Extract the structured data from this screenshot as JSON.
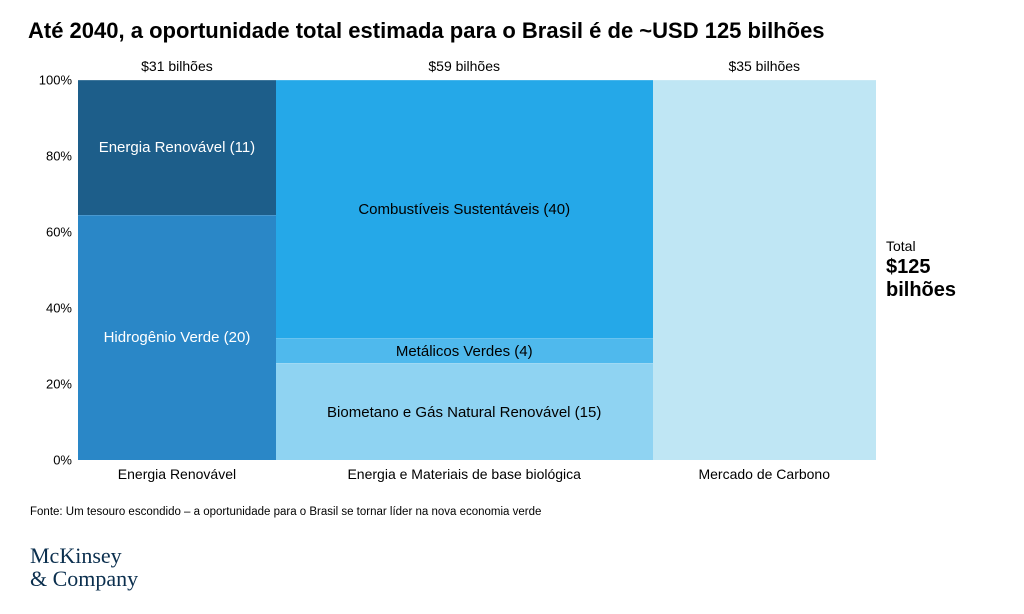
{
  "title": "Até 2040, a oportunidade total estimada para o Brasil é de ~USD 125 bilhões",
  "chart": {
    "type": "marimekko",
    "background_color": "#ffffff",
    "y_axis": {
      "ticks": [
        "0%",
        "20%",
        "40%",
        "60%",
        "80%",
        "100%"
      ],
      "pct": [
        0,
        20,
        40,
        60,
        80,
        100
      ],
      "fontsize": 13
    },
    "columns": [
      {
        "id": "renovavel",
        "top_label": "$31 bilhões",
        "bottom_label": "Energia Renovável",
        "width_value": 31,
        "segments": [
          {
            "label": "Energia Renovável (11)",
            "value": 11,
            "color": "#1d5e8a",
            "text_color": "#ffffff"
          },
          {
            "label": "Hidrogênio Verde (20)",
            "value": 20,
            "color": "#2a87c7",
            "text_color": "#ffffff"
          }
        ]
      },
      {
        "id": "biologica",
        "top_label": "$59 bilhões",
        "bottom_label": "Energia e Materiais de base biológica",
        "width_value": 59,
        "segments": [
          {
            "label": "Combustíveis Sustentáveis (40)",
            "value": 40,
            "color": "#25a8e8",
            "text_color": "#000000"
          },
          {
            "label": "Metálicos Verdes (4)",
            "value": 4,
            "color": "#4fb9ed",
            "text_color": "#000000"
          },
          {
            "label": "Biometano e Gás Natural Renovável (15)",
            "value": 15,
            "color": "#8fd3f2",
            "text_color": "#000000"
          }
        ]
      },
      {
        "id": "carbono",
        "top_label": "$35 bilhões",
        "bottom_label": "Mercado de Carbono",
        "width_value": 35,
        "segments": [
          {
            "label": "",
            "value": 35,
            "color": "#bfe6f4",
            "text_color": "#000000"
          }
        ]
      }
    ],
    "total": {
      "label": "Total",
      "value": "$125 bilhões"
    }
  },
  "source": "Fonte: Um tesouro escondido – a oportunidade para o Brasil se tornar líder na nova economia verde",
  "logo": {
    "line1": "McKinsey",
    "line2": "& Company",
    "color": "#0b2f4e"
  }
}
